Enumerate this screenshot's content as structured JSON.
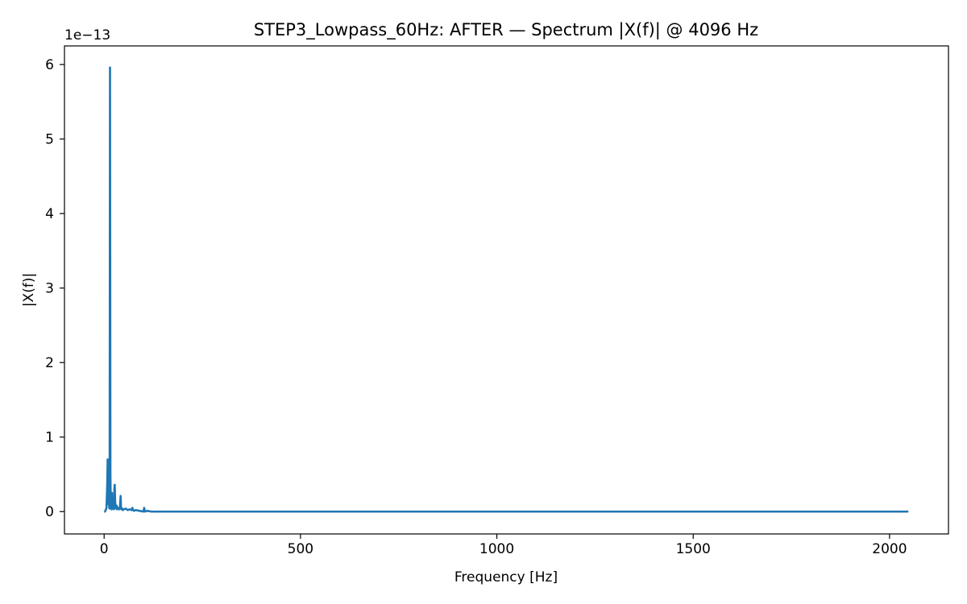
{
  "chart_data": {
    "type": "line",
    "title": "STEP3_Lowpass_60Hz: AFTER — Spectrum |X(f)| @ 4096 Hz",
    "xlabel": "Frequency [Hz]",
    "ylabel": "|X(f)|",
    "y_offset_text": "1e−13",
    "xlim": [
      -101,
      2150
    ],
    "ylim": [
      -0.3,
      6.25
    ],
    "x_ticks": [
      0,
      500,
      1000,
      1500,
      2000
    ],
    "x_tick_labels": [
      "0",
      "500",
      "1000",
      "1500",
      "2000"
    ],
    "y_ticks": [
      0,
      1,
      2,
      3,
      4,
      5,
      6
    ],
    "y_tick_labels": [
      "0",
      "1",
      "2",
      "3",
      "4",
      "5",
      "6"
    ],
    "grid": false,
    "line_color": "#1f77b4",
    "series": [
      {
        "x": [
          0,
          2,
          4,
          6,
          8,
          9,
          10,
          11,
          12,
          13,
          14,
          15,
          16,
          17,
          18,
          19,
          20,
          21,
          22,
          23,
          24,
          25,
          26,
          27,
          28,
          29,
          30,
          31,
          32,
          33,
          34,
          35,
          36,
          38,
          40,
          42,
          43,
          44,
          46,
          48,
          50,
          55,
          60,
          65,
          70,
          72,
          74,
          76,
          80,
          90,
          100,
          102,
          104,
          110,
          120,
          140,
          500,
          1000,
          1500,
          2048
        ],
        "y": [
          0.0,
          0.0,
          0.02,
          0.05,
          0.38,
          0.7,
          0.22,
          0.1,
          0.3,
          0.05,
          0.04,
          5.96,
          0.5,
          0.05,
          0.2,
          0.03,
          0.25,
          0.05,
          0.04,
          0.05,
          0.12,
          0.03,
          0.3,
          0.36,
          0.15,
          0.05,
          0.05,
          0.04,
          0.08,
          0.03,
          0.05,
          0.04,
          0.05,
          0.03,
          0.04,
          0.21,
          0.05,
          0.03,
          0.04,
          0.02,
          0.03,
          0.04,
          0.02,
          0.03,
          0.02,
          0.05,
          0.02,
          0.01,
          0.02,
          0.01,
          0.0,
          0.05,
          0.0,
          0.01,
          0.0,
          0.0,
          0.0,
          0.0,
          0.0,
          0.0
        ]
      }
    ]
  }
}
